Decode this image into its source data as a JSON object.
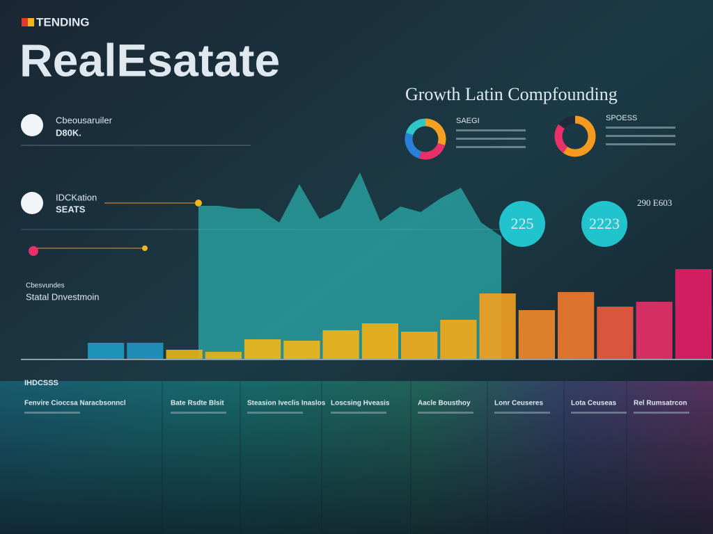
{
  "header": {
    "badge": "TENDING",
    "title": "RealEsatate",
    "subtitle": "Growth Latin Compfounding"
  },
  "left_panel": {
    "item1": "Cbeousaruiler",
    "item1_sub": "D80K.",
    "item2": "IDCKation",
    "item2_sub": "SEATS",
    "section_title": "Statal Dnvestmoin",
    "section_label": "Cbesvundes"
  },
  "stats": [
    {
      "value": 225
    },
    {
      "value": 2223
    }
  ],
  "stats_label": "290 E603",
  "bottom": {
    "heading": "IHDCSSS",
    "columns": [
      "Fenvire Cioccsa Naracbsonncl",
      "Bate Rsdte Blsit",
      "Steasion Iveclis Inaslos",
      "Loscsing Hveasis",
      "Aacle Bousthoy",
      "Lonr Ceuseres",
      "Lota Ceuseas",
      "Rel Rumsatrcon"
    ]
  },
  "chart_data": [
    {
      "type": "area",
      "values": [
        220,
        220,
        216,
        216,
        196,
        251,
        201,
        216,
        268,
        198,
        219,
        211,
        231,
        246,
        196,
        176
      ],
      "color": "#2fd6cf",
      "ylim": [
        0,
        280
      ]
    },
    {
      "type": "bar",
      "values": [
        23,
        23,
        13,
        10,
        28,
        26,
        41,
        51,
        39,
        56,
        94,
        70,
        96,
        75,
        82,
        129
      ],
      "colors": [
        "#1f9cc4",
        "#2097c2",
        "#e8b516",
        "#e8b516",
        "#f3b818",
        "#f3b818",
        "#f5b417",
        "#f5b015",
        "#f6a817",
        "#f6a817",
        "#f5a020",
        "#f28a2a",
        "#f27a2c",
        "#ef5a3e",
        "#e9306a",
        "#e41d66"
      ],
      "ylim": [
        0,
        140
      ]
    },
    {
      "type": "pie",
      "title": "SAEGI",
      "values": [
        30,
        25,
        25,
        20
      ],
      "colors": [
        "#f5a020",
        "#e9306a",
        "#2a7fd6",
        "#2fc6c7"
      ]
    },
    {
      "type": "pie",
      "title": "SPOESS",
      "values": [
        60,
        25,
        15
      ],
      "colors": [
        "#f59a20",
        "#e9306a",
        "#1c2a3a"
      ]
    }
  ]
}
